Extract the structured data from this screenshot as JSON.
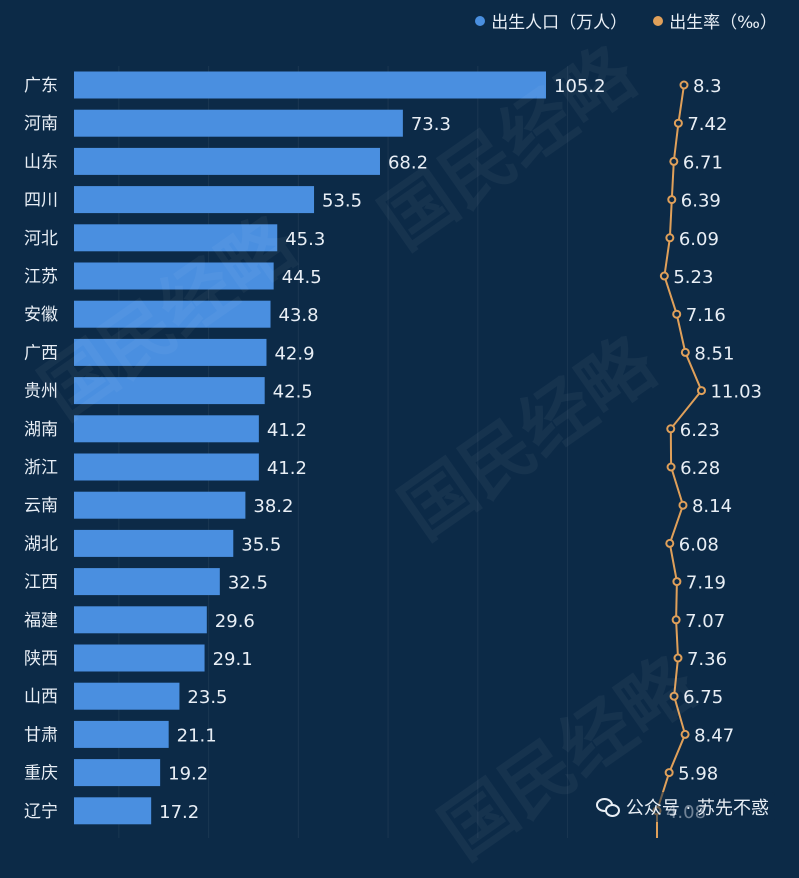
{
  "legend": {
    "series1": "出生人口（万人）",
    "series2": "出生率（‰）",
    "color1": "#4a8fe0",
    "color2": "#e0a05a"
  },
  "watermark": "国民经略",
  "footer": {
    "icon": "wechat-icon",
    "text": "公众号 · 苏先不惑"
  },
  "chart_data": {
    "type": "bar",
    "orientation": "horizontal",
    "categories": [
      "广东",
      "河南",
      "山东",
      "四川",
      "河北",
      "江苏",
      "安徽",
      "广西",
      "贵州",
      "湖南",
      "浙江",
      "云南",
      "湖北",
      "江西",
      "福建",
      "陕西",
      "山西",
      "甘肃",
      "重庆",
      "辽宁"
    ],
    "series": [
      {
        "name": "出生人口（万人）",
        "type": "bar",
        "values": [
          105.2,
          73.3,
          68.2,
          53.5,
          45.3,
          44.5,
          43.8,
          42.9,
          42.5,
          41.2,
          41.2,
          38.2,
          35.5,
          32.5,
          29.6,
          29.1,
          23.5,
          21.1,
          19.2,
          17.2
        ],
        "labels": [
          "105.2",
          "73.3",
          "68.2",
          "53.5",
          "45.3",
          "44.5",
          "43.8",
          "42.9",
          "42.5",
          "41.2",
          "41.2",
          "38.2",
          "35.5",
          "32.5",
          "29.6",
          "29.1",
          "23.5",
          "21.1",
          "19.2",
          "17.2"
        ]
      },
      {
        "name": "出生率（‰）",
        "type": "line",
        "values": [
          8.3,
          7.42,
          6.71,
          6.39,
          6.09,
          5.23,
          7.16,
          8.51,
          11.03,
          6.23,
          6.28,
          8.14,
          6.08,
          7.19,
          7.07,
          7.36,
          6.75,
          8.47,
          5.98,
          4.08
        ],
        "labels": [
          "8.3",
          "7.42",
          "6.71",
          "6.39",
          "6.09",
          "5.23",
          "7.16",
          "8.51",
          "11.03",
          "6.23",
          "6.28",
          "8.14",
          "6.08",
          "7.19",
          "7.07",
          "7.36",
          "6.75",
          "8.47",
          "5.98",
          "4.08"
        ]
      }
    ],
    "xlim": [
      0,
      110
    ],
    "grid": true,
    "legend": "top-right"
  }
}
